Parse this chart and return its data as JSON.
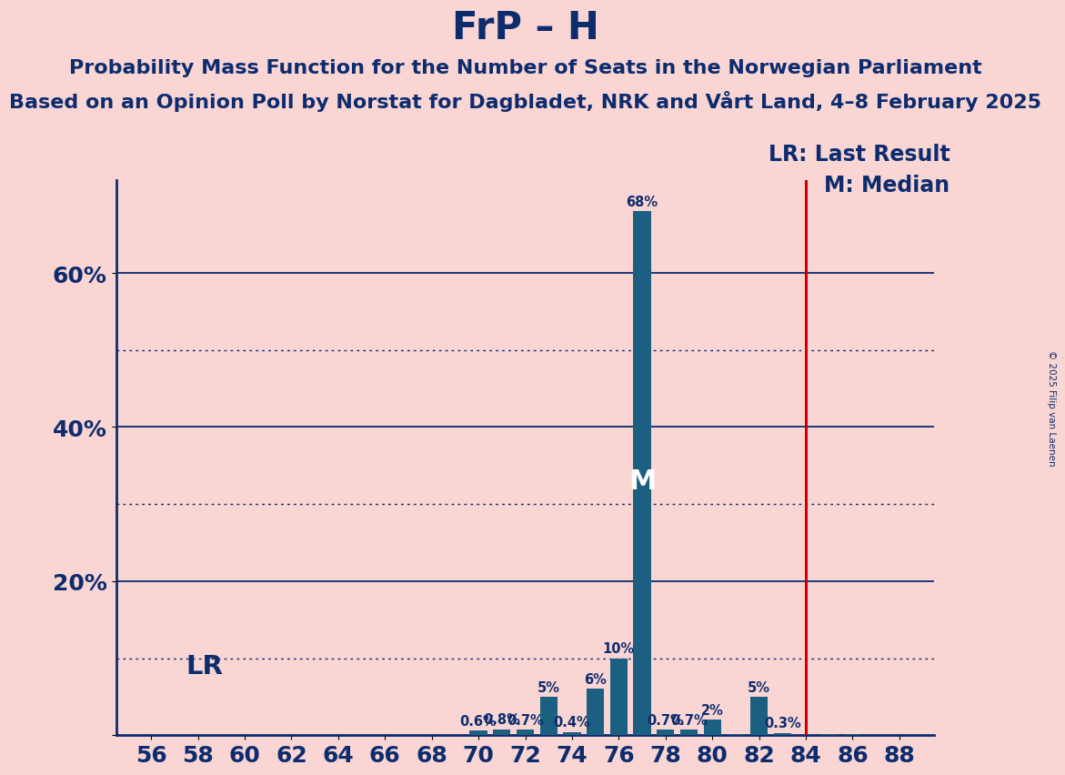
{
  "title": "FrP – H",
  "subtitle1": "Probability Mass Function for the Number of Seats in the Norwegian Parliament",
  "subtitle2": "Based on an Opinion Poll by Norstat for Dagbladet, NRK and Vårt Land, 4–8 February 2025",
  "copyright": "© 2025 Filip van Laenen",
  "seats": [
    56,
    57,
    58,
    59,
    60,
    61,
    62,
    63,
    64,
    65,
    66,
    67,
    68,
    69,
    70,
    71,
    72,
    73,
    74,
    75,
    76,
    77,
    78,
    79,
    80,
    81,
    82,
    83,
    84,
    85,
    86,
    87,
    88
  ],
  "probabilities": [
    0.0,
    0.0,
    0.0,
    0.0,
    0.0,
    0.0,
    0.0,
    0.0,
    0.0,
    0.0,
    0.0,
    0.0,
    0.0,
    0.0,
    0.6,
    0.8,
    0.7,
    5.0,
    0.4,
    6.0,
    10.0,
    68.0,
    0.7,
    0.7,
    2.0,
    0.1,
    5.0,
    0.3,
    0.0,
    0.1,
    0.1,
    0.0,
    0.0
  ],
  "bar_color": "#1b6080",
  "background_color": "#f9d5d3",
  "axis_color": "#0d2c6e",
  "label_color": "#0d2c6e",
  "lr_line_color": "#cc0000",
  "lr_value": 84,
  "median_value": 77,
  "median_label": "M",
  "lr_label": "LR",
  "legend_lr": "LR: Last Result",
  "legend_m": "M: Median",
  "ylim": [
    0,
    72
  ],
  "bar_width": 0.75,
  "title_fontsize": 30,
  "subtitle1_fontsize": 16,
  "subtitle2_fontsize": 16,
  "label_fontsize": 10.5,
  "tick_fontsize": 18,
  "legend_fontsize": 17
}
